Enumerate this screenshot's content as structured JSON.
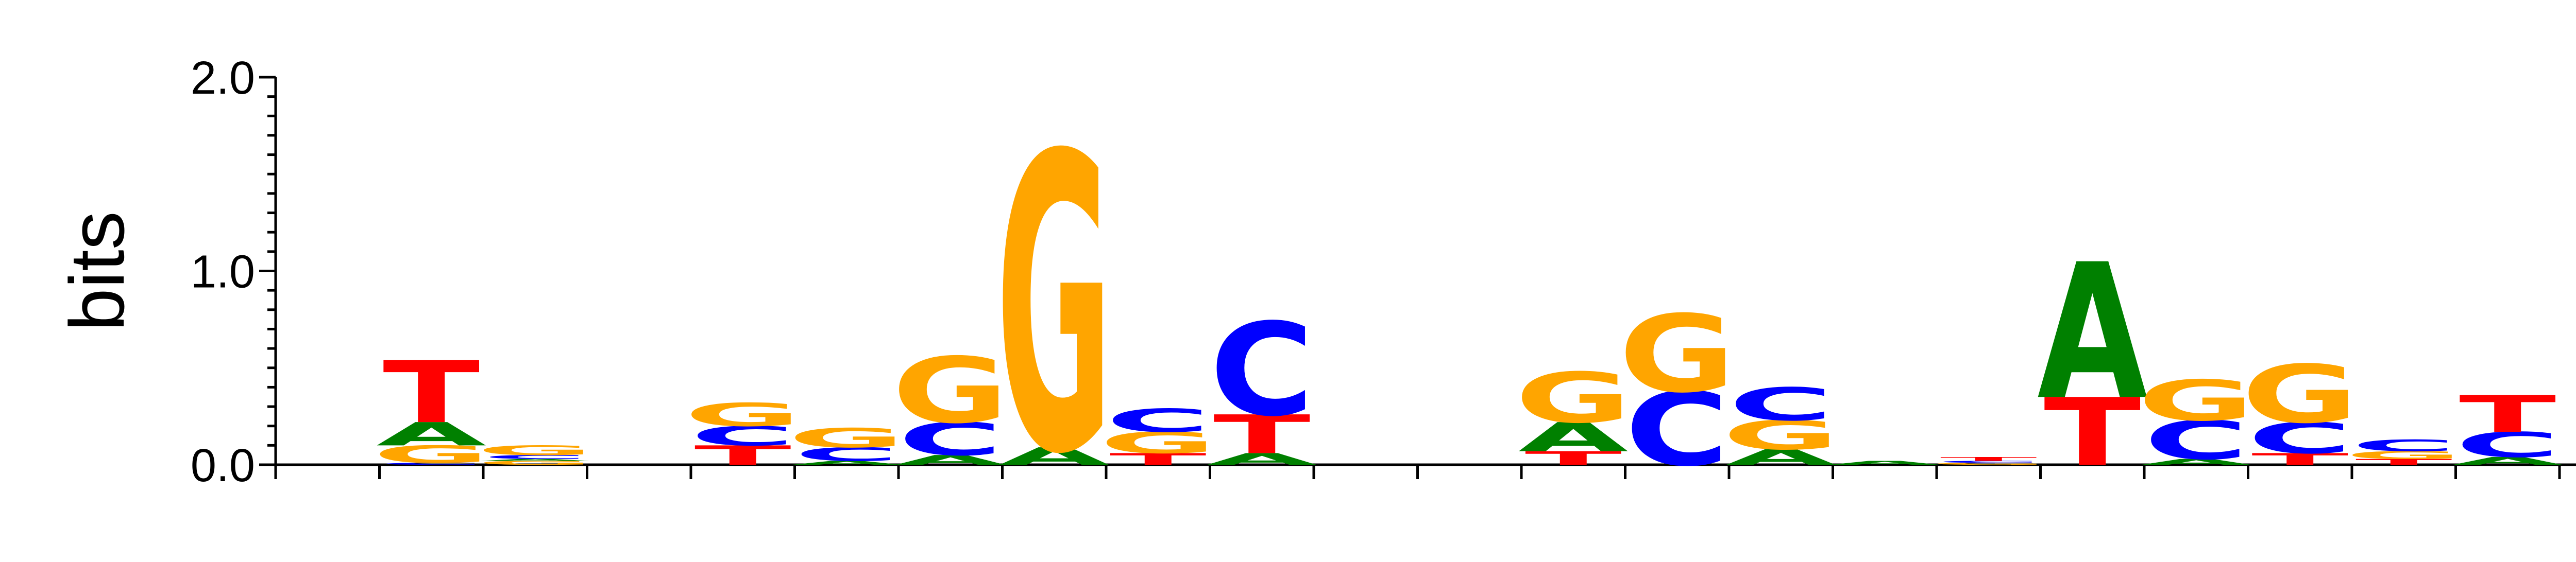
{
  "chart_data": {
    "type": "sequence-logo",
    "ylabel": "bits",
    "ylim": [
      0,
      2.0
    ],
    "yticks": [
      {
        "value": 0.0,
        "label": "0.0"
      },
      {
        "value": 1.0,
        "label": "1.0"
      },
      {
        "value": 2.0,
        "label": "2.0"
      }
    ],
    "colors": {
      "A": "#008000",
      "C": "#0000ff",
      "G": "#ffa500",
      "T": "#ff0000"
    },
    "positions": [
      {
        "pos": 1,
        "stack": []
      },
      {
        "pos": 2,
        "stack": [
          {
            "base": "C",
            "bits": 0.01
          },
          {
            "base": "G",
            "bits": 0.09
          },
          {
            "base": "A",
            "bits": 0.12
          },
          {
            "base": "T",
            "bits": 0.32
          }
        ]
      },
      {
        "pos": 3,
        "stack": [
          {
            "base": "G",
            "bits": 0.02
          },
          {
            "base": "A",
            "bits": 0.01
          },
          {
            "base": "C",
            "bits": 0.02
          },
          {
            "base": "G",
            "bits": 0.05
          }
        ]
      },
      {
        "pos": 4,
        "stack": []
      },
      {
        "pos": 5,
        "stack": [
          {
            "base": "T",
            "bits": 0.1
          },
          {
            "base": "C",
            "bits": 0.1
          },
          {
            "base": "G",
            "bits": 0.12
          }
        ]
      },
      {
        "pos": 6,
        "stack": [
          {
            "base": "A",
            "bits": 0.02
          },
          {
            "base": "C",
            "bits": 0.07
          },
          {
            "base": "G",
            "bits": 0.1
          }
        ]
      },
      {
        "pos": 7,
        "stack": [
          {
            "base": "A",
            "bits": 0.05
          },
          {
            "base": "C",
            "bits": 0.17
          },
          {
            "base": "G",
            "bits": 0.34
          }
        ]
      },
      {
        "pos": 8,
        "stack": [
          {
            "base": "A",
            "bits": 0.09
          },
          {
            "base": "G",
            "bits": 1.53
          }
        ]
      },
      {
        "pos": 9,
        "stack": [
          {
            "base": "T",
            "bits": 0.06
          },
          {
            "base": "G",
            "bits": 0.11
          },
          {
            "base": "C",
            "bits": 0.12
          }
        ]
      },
      {
        "pos": 10,
        "stack": [
          {
            "base": "A",
            "bits": 0.06
          },
          {
            "base": "T",
            "bits": 0.2
          },
          {
            "base": "C",
            "bits": 0.48
          }
        ]
      },
      {
        "pos": 11,
        "stack": []
      },
      {
        "pos": 12,
        "stack": []
      },
      {
        "pos": 13,
        "stack": [
          {
            "base": "T",
            "bits": 0.07
          },
          {
            "base": "A",
            "bits": 0.15
          },
          {
            "base": "G",
            "bits": 0.26
          }
        ]
      },
      {
        "pos": 14,
        "stack": [
          {
            "base": "C",
            "bits": 0.38
          },
          {
            "base": "G",
            "bits": 0.4
          }
        ]
      },
      {
        "pos": 15,
        "stack": [
          {
            "base": "A",
            "bits": 0.08
          },
          {
            "base": "G",
            "bits": 0.15
          },
          {
            "base": "C",
            "bits": 0.17
          }
        ]
      },
      {
        "pos": 16,
        "stack": [
          {
            "base": "A",
            "bits": 0.02
          }
        ]
      },
      {
        "pos": 17,
        "stack": [
          {
            "base": "G",
            "bits": 0.01
          },
          {
            "base": "C",
            "bits": 0.01
          },
          {
            "base": "T",
            "bits": 0.02
          }
        ]
      },
      {
        "pos": 18,
        "stack": [
          {
            "base": "T",
            "bits": 0.35
          },
          {
            "base": "A",
            "bits": 0.7
          }
        ]
      },
      {
        "pos": 19,
        "stack": [
          {
            "base": "A",
            "bits": 0.03
          },
          {
            "base": "C",
            "bits": 0.2
          },
          {
            "base": "G",
            "bits": 0.21
          }
        ]
      },
      {
        "pos": 20,
        "stack": [
          {
            "base": "T",
            "bits": 0.06
          },
          {
            "base": "C",
            "bits": 0.16
          },
          {
            "base": "G",
            "bits": 0.3
          }
        ]
      },
      {
        "pos": 21,
        "stack": [
          {
            "base": "T",
            "bits": 0.03
          },
          {
            "base": "G",
            "bits": 0.04
          },
          {
            "base": "C",
            "bits": 0.06
          }
        ]
      },
      {
        "pos": 22,
        "stack": [
          {
            "base": "A",
            "bits": 0.04
          },
          {
            "base": "C",
            "bits": 0.13
          },
          {
            "base": "T",
            "bits": 0.19
          }
        ]
      }
    ]
  }
}
